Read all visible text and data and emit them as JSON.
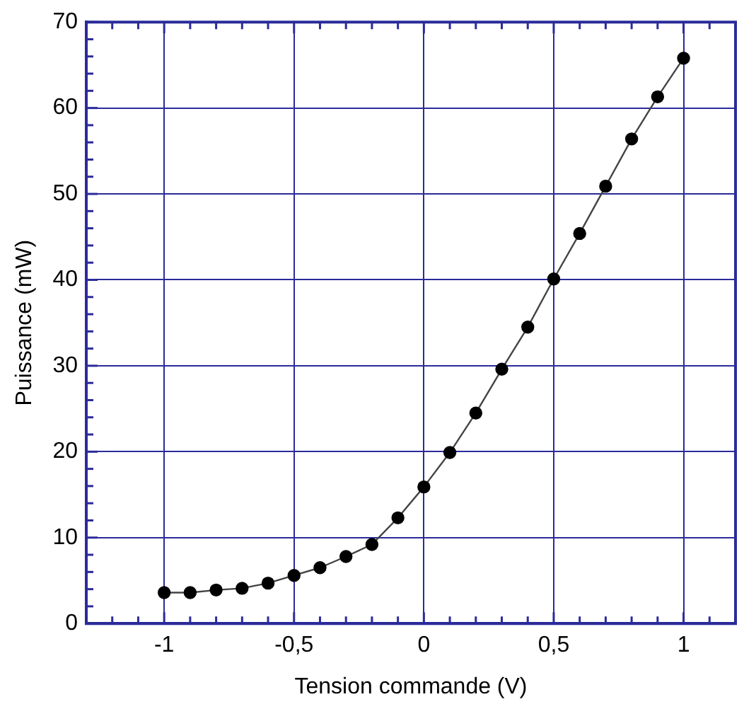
{
  "chart_data": {
    "type": "line",
    "xlabel": "Tension commande (V)",
    "ylabel": "Puissance (mW)",
    "x": [
      -1,
      -0.9,
      -0.8,
      -0.7,
      -0.6,
      -0.5,
      -0.4,
      -0.3,
      -0.2,
      -0.1,
      0,
      0.1,
      0.2,
      0.3,
      0.4,
      0.5,
      0.6,
      0.7,
      0.8,
      0.9,
      1
    ],
    "series": [
      {
        "color": "#000000",
        "values": [
          3.6,
          3.6,
          3.9,
          4.1,
          4.7,
          5.6,
          6.5,
          7.8,
          9.2,
          12.3,
          15.9,
          19.9,
          24.5,
          29.6,
          34.5,
          40.1,
          45.4,
          50.9,
          56.4,
          61.3,
          65.8
        ]
      }
    ],
    "xlim": [
      -1.3,
      1.2
    ],
    "xticks": [
      {
        "value": -1,
        "label": "-1"
      },
      {
        "value": -0.5,
        "label": "-0,5"
      },
      0,
      {
        "value": 0.5,
        "label": "0,5"
      },
      1
    ],
    "ylim": [
      0,
      70
    ],
    "yticks": [
      0,
      10,
      20,
      30,
      40,
      50,
      60,
      70
    ],
    "grid": true,
    "legend": false,
    "marker": "circle",
    "line_style": "solid"
  }
}
